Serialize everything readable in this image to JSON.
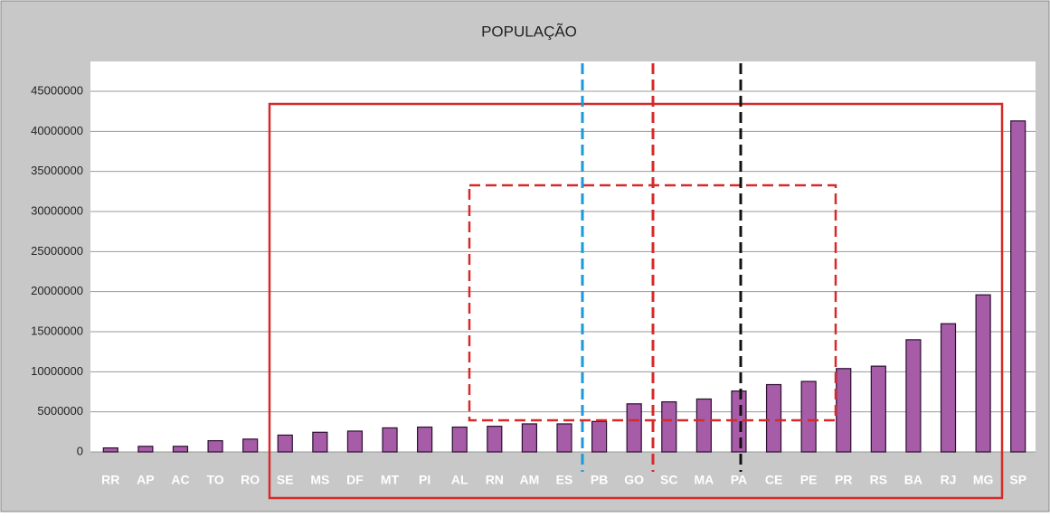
{
  "chart_data": {
    "type": "bar",
    "title": "POPULAÇÃO",
    "categories": [
      "RR",
      "AP",
      "AC",
      "TO",
      "RO",
      "SE",
      "MS",
      "DF",
      "MT",
      "PI",
      "AL",
      "RN",
      "AM",
      "ES",
      "PB",
      "GO",
      "SC",
      "MA",
      "PA",
      "CE",
      "PE",
      "PR",
      "RS",
      "BA",
      "RJ",
      "MG",
      "SP"
    ],
    "values": [
      500000,
      700000,
      700000,
      1400000,
      1600000,
      2100000,
      2450000,
      2600000,
      3000000,
      3100000,
      3100000,
      3200000,
      3500000,
      3500000,
      3800000,
      6000000,
      6250000,
      6600000,
      7600000,
      8400000,
      8800000,
      10400000,
      10700000,
      14000000,
      16000000,
      19600000,
      41300000
    ],
    "color": "#a65ca6",
    "ylim": [
      0,
      45000000
    ],
    "yticks": [
      0,
      5000000,
      10000000,
      15000000,
      20000000,
      25000000,
      30000000,
      35000000,
      40000000,
      45000000
    ],
    "grid": true
  }
}
